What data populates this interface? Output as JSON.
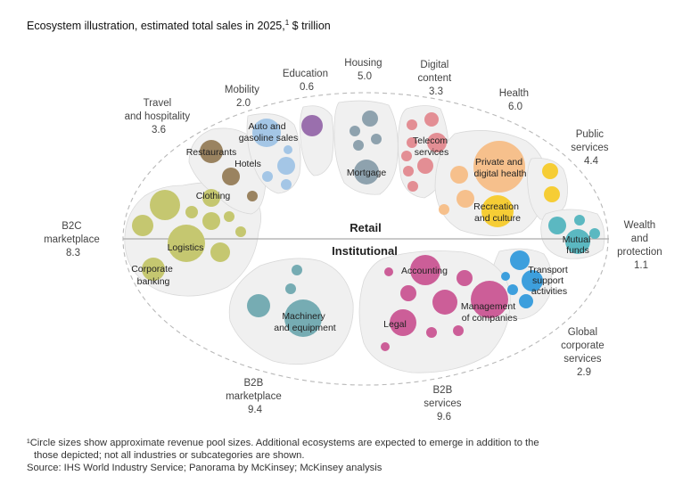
{
  "title": "Ecosystem illustration, estimated total sales in 2025,",
  "title_sup": "1",
  "title_unit": " $ trillion",
  "divider": {
    "top": "Retail",
    "bottom": "Institutional"
  },
  "outer": {
    "b2c": [
      "B2C",
      "marketplace",
      "8.3"
    ],
    "travel": [
      "Travel",
      "and hospitality",
      "3.6"
    ],
    "mobility": [
      "Mobility",
      "2.0"
    ],
    "education": [
      "Education",
      "0.6"
    ],
    "housing": [
      "Housing",
      "5.0"
    ],
    "digital": [
      "Digital",
      "content",
      "3.3"
    ],
    "health": [
      "Health",
      "6.0"
    ],
    "public": [
      "Public",
      "services",
      "4.4"
    ],
    "wealth": [
      "Wealth",
      "and",
      "protection",
      "1.1"
    ],
    "global": [
      "Global",
      "corporate",
      "services",
      "2.9"
    ],
    "b2b_services": [
      "B2B",
      "services",
      "9.6"
    ],
    "b2b_marketplace": [
      "B2B",
      "marketplace",
      "9.4"
    ]
  },
  "inner": {
    "restaurants": "Restaurants",
    "hotels": "Hotels",
    "auto": [
      "Auto and",
      "gasoline sales"
    ],
    "clothing": "Clothing",
    "logistics": "Logistics",
    "corporate_banking": [
      "Corporate",
      "banking"
    ],
    "mortgage": "Mortgage",
    "telecom": [
      "Telecom",
      "services"
    ],
    "private_health": [
      "Private and",
      "digital health"
    ],
    "recreation": [
      "Recreation",
      "and culture"
    ],
    "mutual_funds": [
      "Mutual",
      "funds"
    ],
    "transport": [
      "Transport",
      "support",
      "activities"
    ],
    "accounting": "Accounting",
    "management": [
      "Management",
      "of companies"
    ],
    "legal": "Legal",
    "machinery": [
      "Machinery",
      "and equipment"
    ]
  },
  "colors": {
    "olive": "#c5c770",
    "brown": "#9a8360",
    "blue_light": "#a4c6e6",
    "purple": "#9a6fad",
    "slate": "#8ea2ae",
    "red": "#e38e94",
    "orange": "#f6c08c",
    "yellow": "#f6cd35",
    "teal": "#5bb8c1",
    "blue": "#3d9fdd",
    "magenta": "#cc5e98",
    "teal_grey": "#76acb3",
    "cluster": "#f0f0f0"
  },
  "footnote": [
    "¹Circle sizes show approximate revenue pool sizes. Additional ecosystems are expected to emerge in addition to the",
    "those depicted; not all industries or subcategories are shown.",
    "Source: IHS World Industry Service; Panorama by McKinsey; McKinsey analysis"
  ]
}
